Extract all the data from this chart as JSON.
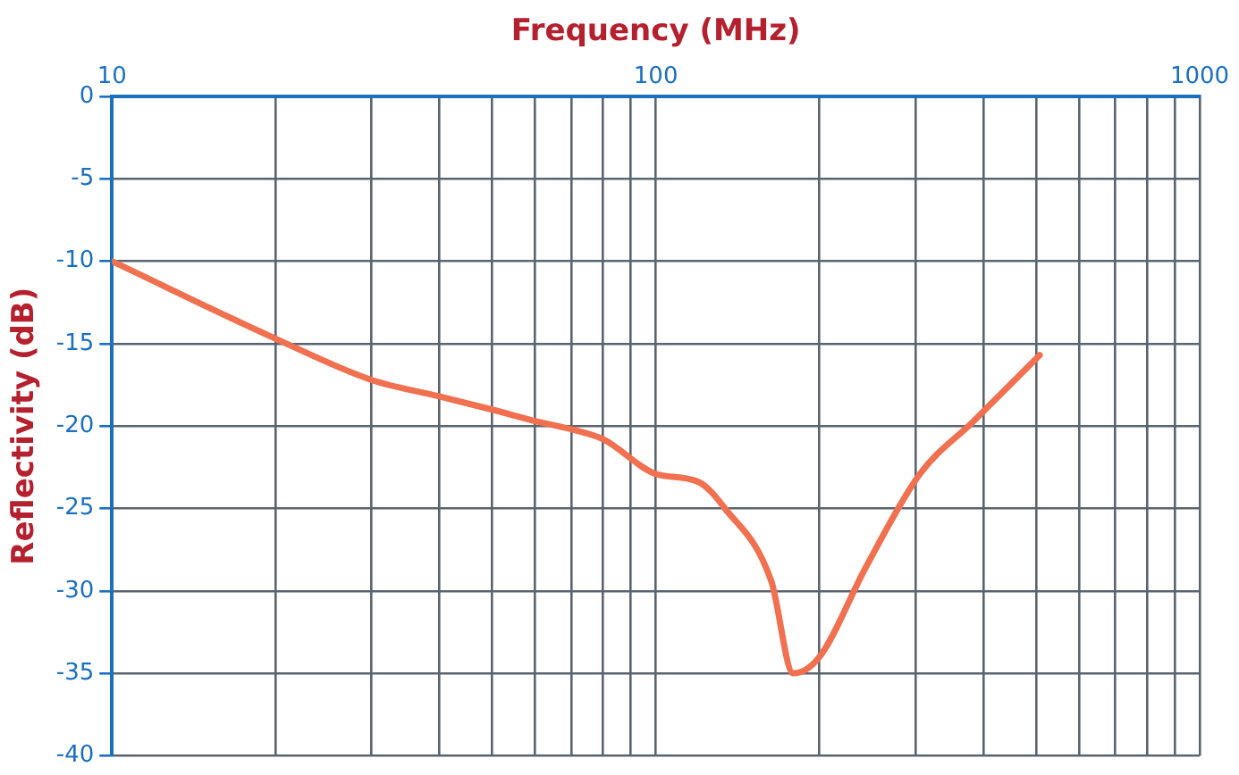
{
  "chart_data": {
    "type": "line",
    "xlabel": "Frequency (MHz)",
    "ylabel": "Reflectivity (dB)",
    "x": [
      10,
      20,
      30,
      40,
      50,
      60,
      70,
      80,
      100,
      120,
      134,
      163,
      179,
      200,
      243,
      306,
      384,
      508
    ],
    "series": [
      {
        "color": "#f0704f",
        "values": [
          -10,
          -14.7,
          -17.2,
          -18.2,
          -19,
          -19.7,
          -20.2,
          -20.8,
          -22.9,
          -23.4,
          -25,
          -29.4,
          -35,
          -34,
          -28.6,
          -22.9,
          -19.7,
          -15.7
        ]
      }
    ],
    "log": "x",
    "xlim": [
      10,
      1000
    ],
    "xticks": [
      10,
      {
        "value": 20,
        "label": null
      },
      {
        "value": 30,
        "label": null
      },
      {
        "value": 40,
        "label": null
      },
      {
        "value": 50,
        "label": null
      },
      {
        "value": 60,
        "label": null
      },
      {
        "value": 70,
        "label": null
      },
      {
        "value": 80,
        "label": null
      },
      {
        "value": 90,
        "label": null
      },
      100,
      {
        "value": 200,
        "label": null
      },
      {
        "value": 300,
        "label": null
      },
      {
        "value": 400,
        "label": null
      },
      {
        "value": 500,
        "label": null
      },
      {
        "value": 600,
        "label": null
      },
      {
        "value": 700,
        "label": null
      },
      {
        "value": 800,
        "label": null
      },
      {
        "value": 900,
        "label": null
      },
      1000
    ],
    "ylim": [
      -40,
      0
    ],
    "yticks": [
      0,
      -5,
      -10,
      -15,
      -20,
      -25,
      -30,
      -35,
      -40
    ],
    "grid": true,
    "marker": "none",
    "line_style": "solid"
  }
}
